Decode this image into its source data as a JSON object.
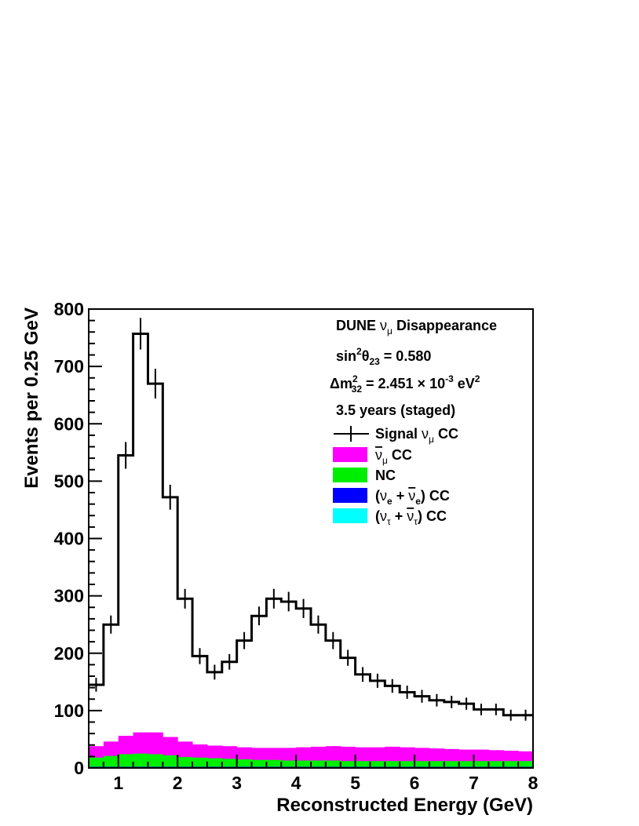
{
  "chart_data": {
    "type": "histogram",
    "bin_width": 0.25,
    "x_edges": [
      0.5,
      0.75,
      1.0,
      1.25,
      1.5,
      1.75,
      2.0,
      2.25,
      2.5,
      2.75,
      3.0,
      3.25,
      3.5,
      3.75,
      4.0,
      4.25,
      4.5,
      4.75,
      5.0,
      5.25,
      5.5,
      5.75,
      6.0,
      6.25,
      6.5,
      6.75,
      7.0,
      7.25,
      7.5,
      7.75,
      8.0
    ],
    "xlim": [
      0.5,
      8
    ],
    "ylim": [
      0,
      800
    ],
    "xticks": [
      "1",
      "2",
      "3",
      "4",
      "5",
      "6",
      "7",
      "8"
    ],
    "yticks": [
      "0",
      "100",
      "200",
      "300",
      "400",
      "500",
      "600",
      "700",
      "800"
    ],
    "xlabel": "Reconstructed Energy (GeV)",
    "ylabel": "Events per 0.25 GeV",
    "series": [
      {
        "name": "Signal νμ CC",
        "style": "step-errorbar",
        "color": "#000000",
        "values": [
          145,
          250,
          545,
          757,
          670,
          472,
          295,
          195,
          167,
          185,
          222,
          265,
          295,
          290,
          278,
          250,
          222,
          192,
          163,
          152,
          143,
          132,
          125,
          118,
          115,
          112,
          102,
          102,
          92,
          92
        ]
      },
      {
        "name": "ν̄μ CC",
        "style": "filled",
        "color": "#ff00ff",
        "values": [
          20,
          25,
          32,
          37,
          38,
          32,
          27,
          23,
          22,
          22,
          21,
          21,
          21,
          22,
          23,
          24,
          25,
          25,
          24,
          24,
          25,
          24,
          23,
          22,
          21,
          20,
          20,
          19,
          18,
          17
        ]
      },
      {
        "name": "NC",
        "style": "filled",
        "color": "#00ee00",
        "values": [
          16,
          19,
          22,
          23,
          22,
          20,
          17,
          16,
          15,
          14,
          13,
          12,
          12,
          11,
          11,
          11,
          11,
          10,
          10,
          10,
          10,
          10,
          10,
          10,
          10,
          10,
          10,
          10,
          10,
          10
        ]
      },
      {
        "name": "(νe + ν̄e) CC",
        "style": "filled",
        "color": "#0000ff",
        "values": [
          2,
          2,
          2,
          2,
          2,
          2,
          2,
          2,
          2,
          2,
          2,
          2,
          2,
          2,
          2,
          2,
          2,
          2,
          2,
          2,
          2,
          2,
          2,
          2,
          2,
          2,
          2,
          2,
          2,
          2
        ]
      },
      {
        "name": "(ντ + ν̄τ) CC",
        "style": "filled",
        "color": "#00ffff",
        "values": [
          0,
          0,
          0,
          0,
          0,
          0,
          0,
          0,
          0,
          0,
          0,
          0,
          0,
          0,
          0,
          0,
          0,
          0,
          0,
          0,
          0,
          0,
          0,
          0,
          0,
          0,
          0,
          0,
          0,
          0
        ]
      }
    ],
    "annotations": [
      "DUNE νμ Disappearance",
      "sin²θ23 = 0.580",
      "Δm²32 = 2.451 × 10⁻³ eV²",
      "3.5 years (staged)"
    ],
    "legend_position": "top-right"
  }
}
